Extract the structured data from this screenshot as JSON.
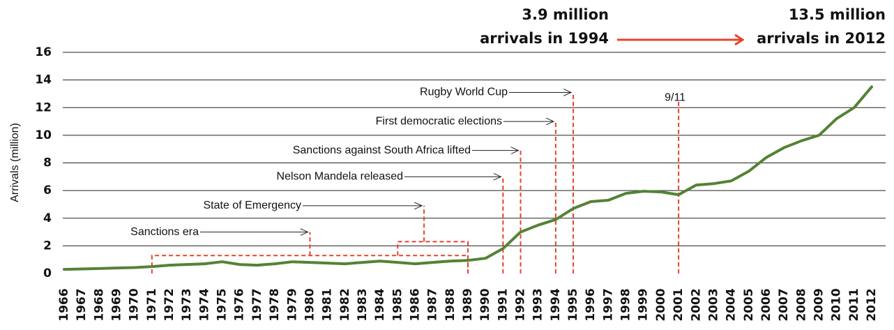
{
  "chart_data": {
    "type": "line",
    "y_label": "Arrivals (million)",
    "x": [
      1966,
      1967,
      1968,
      1969,
      1970,
      1971,
      1972,
      1973,
      1974,
      1975,
      1976,
      1977,
      1978,
      1979,
      1980,
      1981,
      1982,
      1983,
      1984,
      1985,
      1986,
      1987,
      1988,
      1989,
      1990,
      1991,
      1992,
      1993,
      1994,
      1995,
      1996,
      1997,
      1998,
      1999,
      2000,
      2001,
      2002,
      2003,
      2004,
      2005,
      2006,
      2007,
      2008,
      2009,
      2010,
      2011,
      2012
    ],
    "series": [
      {
        "color": "#548235",
        "values": [
          0.3,
          0.33,
          0.36,
          0.4,
          0.43,
          0.5,
          0.6,
          0.65,
          0.7,
          0.85,
          0.65,
          0.6,
          0.7,
          0.85,
          0.8,
          0.75,
          0.7,
          0.8,
          0.9,
          0.8,
          0.7,
          0.8,
          0.9,
          0.95,
          1.1,
          1.8,
          3.0,
          3.5,
          3.9,
          4.7,
          5.2,
          5.3,
          5.8,
          5.95,
          5.9,
          5.7,
          6.4,
          6.5,
          6.7,
          7.4,
          8.4,
          9.1,
          9.6,
          10.0,
          11.2,
          12.0,
          13.5
        ]
      }
    ],
    "ylim": [
      0,
      16
    ],
    "yticks": [
      0,
      2,
      4,
      6,
      8,
      10,
      12,
      14,
      16
    ],
    "grid": true,
    "annotations": [
      {
        "text": "Sanctions era",
        "x": 1980,
        "y": 3.0,
        "span": [
          1971,
          1989
        ],
        "base": 1.3
      },
      {
        "text": "State of Emergency",
        "x": 1986.5,
        "y": 4.9,
        "span": [
          1985,
          1989
        ],
        "base": 2.3
      },
      {
        "text": "Nelson Mandela released",
        "x": 1991,
        "y": 7.0
      },
      {
        "text": "Sanctions against South Africa lifted",
        "x": 1992,
        "y": 8.9
      },
      {
        "text": "First democratic elections",
        "x": 1994,
        "y": 11.0
      },
      {
        "text": "Rugby World Cup",
        "x": 1995,
        "y": 13.1
      },
      {
        "text": "9/11",
        "x": 2001,
        "y": 12.5
      }
    ],
    "callouts": [
      {
        "lines": [
          "3.9 million",
          "arrivals in 1994"
        ]
      },
      {
        "lines": [
          "13.5 million",
          "arrivals in 2012"
        ]
      }
    ]
  }
}
